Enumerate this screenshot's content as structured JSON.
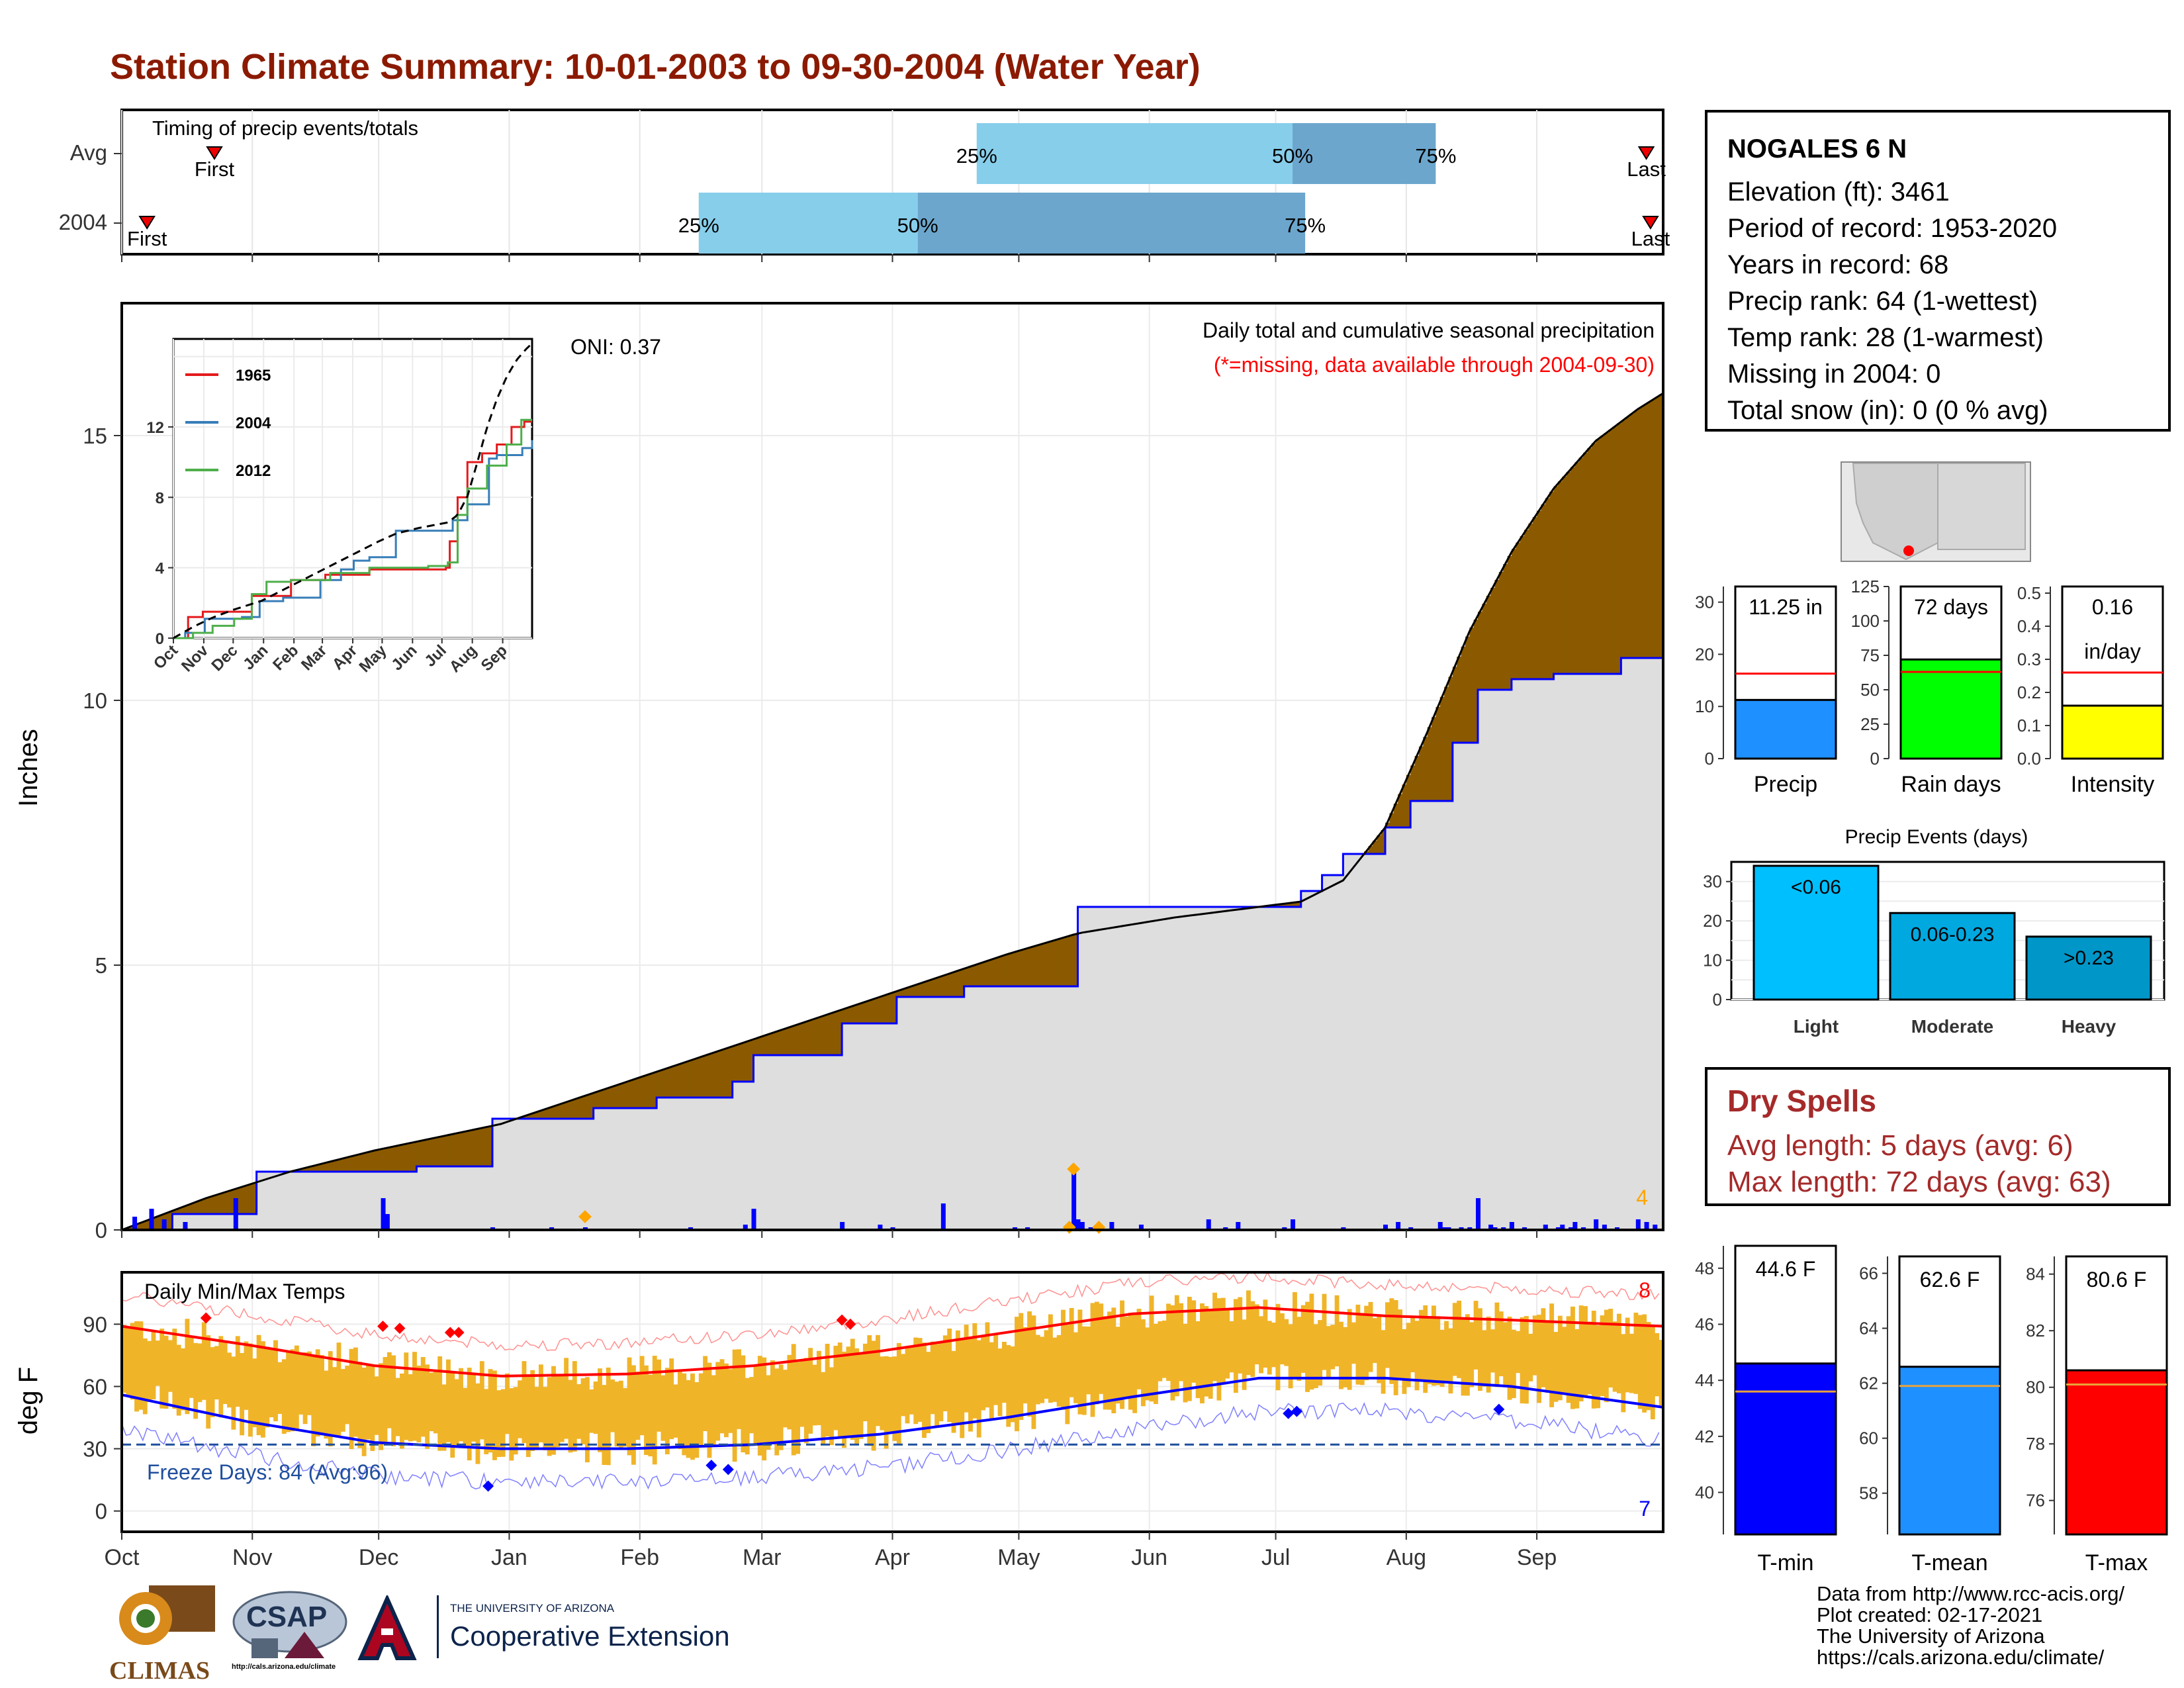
{
  "title": "Station Climate Summary: 10-01-2003 to 09-30-2004 (Water Year)",
  "timing": {
    "label": "Timing of precip events/totals",
    "rows": [
      {
        "name": "Avg",
        "first": "First",
        "last": "Last",
        "p25": "25%",
        "p50": "50%",
        "p75": "75%"
      },
      {
        "name": "2004",
        "first": "First",
        "last": "Last",
        "p25": "25%",
        "p50": "50%",
        "p75": "75%"
      }
    ]
  },
  "precip": {
    "ylabel": "Inches",
    "caption": "Daily total and cumulative seasonal precipitation",
    "missing_note": "(*=missing, data available through 2004-09-30)",
    "oni": "ONI: 0.37",
    "corner_count": "4",
    "yticks": [
      "0",
      "5",
      "10",
      "15"
    ],
    "inset": {
      "legend": [
        "1965",
        "2004",
        "2012"
      ],
      "yticks": [
        "0",
        "4",
        "8",
        "12"
      ],
      "xticks": [
        "Oct",
        "Nov",
        "Dec",
        "Jan",
        "Feb",
        "Mar",
        "Apr",
        "May",
        "Jun",
        "Jul",
        "Aug",
        "Sep"
      ]
    }
  },
  "temps": {
    "ylabel": "deg F",
    "label": "Daily Min/Max Temps",
    "freeze": "Freeze Days: 84 (Avg:96)",
    "count_high": "8",
    "count_low": "7",
    "yticks": [
      "0",
      "30",
      "60",
      "90"
    ],
    "xticks": [
      "Oct",
      "Nov",
      "Dec",
      "Jan",
      "Feb",
      "Mar",
      "Apr",
      "May",
      "Jun",
      "Jul",
      "Aug",
      "Sep"
    ]
  },
  "station": {
    "name": "NOGALES 6 N",
    "lines": [
      "Elevation (ft): 3461",
      "Period of record: 1953-2020",
      "Years in record: 68",
      "Precip rank: 64 (1-wettest)",
      "Temp rank: 28 (1-warmest)",
      "Missing in 2004: 0",
      "Total snow (in): 0 (0 % avg)"
    ]
  },
  "mini_bars": [
    {
      "label": "Precip",
      "value_text": "11.25 in",
      "yticks": [
        "0",
        "10",
        "20",
        "30"
      ],
      "color": "#1E90FF"
    },
    {
      "label": "Rain days",
      "value_text": "72 days",
      "yticks": [
        "0",
        "25",
        "50",
        "75",
        "100",
        "125"
      ],
      "color": "#00FF00"
    },
    {
      "label": "Intensity",
      "value_text": "0.16",
      "value_unit": "in/day",
      "yticks": [
        "0.0",
        "0.1",
        "0.2",
        "0.3",
        "0.4",
        "0.5"
      ],
      "color": "#FFFF00"
    }
  ],
  "events": {
    "title": "Precip Events (days)",
    "yticks": [
      "0",
      "10",
      "20",
      "30"
    ],
    "bars": [
      {
        "label": "Light",
        "range": "<0.06"
      },
      {
        "label": "Moderate",
        "range": "0.06-0.23"
      },
      {
        "label": "Heavy",
        "range": ">0.23"
      }
    ]
  },
  "dry_spells": {
    "title": "Dry Spells",
    "avg": "Avg length: 5 days (avg: 6)",
    "max": "Max length: 72 days (avg: 63)"
  },
  "temp_bars": [
    {
      "label": "T-min",
      "value_text": "44.6 F",
      "yticks": [
        "40",
        "42",
        "44",
        "46",
        "48"
      ],
      "color": "#0000FF"
    },
    {
      "label": "T-mean",
      "value_text": "62.6 F",
      "yticks": [
        "58",
        "60",
        "62",
        "64",
        "66"
      ],
      "color": "#1E90FF"
    },
    {
      "label": "T-max",
      "value_text": "80.6 F",
      "yticks": [
        "76",
        "78",
        "80",
        "82",
        "84"
      ],
      "color": "#FF0000"
    }
  ],
  "footer": {
    "lines": [
      "Data from http://www.rcc-acis.org/",
      "Plot created: 02-17-2021",
      "The University of Arizona",
      "https://cals.arizona.edu/climate/"
    ],
    "climas": "CLIMAS",
    "csap": "CSAP",
    "csap_url": "http://cals.arizona.edu/climate",
    "ua_small": "THE UNIVERSITY OF ARIZONA",
    "ua_big": "Cooperative Extension"
  },
  "chart_data": [
    {
      "type": "area",
      "title": "Daily total and cumulative seasonal precipitation",
      "ylabel": "Inches",
      "ylim": [
        0,
        17.5
      ],
      "x_unit": "day of water year (Oct 1 = 0)",
      "series": [
        {
          "name": "cumulative 2004",
          "x": [
            0,
            12,
            32,
            70,
            88,
            100,
            112,
            127,
            145,
            150,
            171,
            184,
            200,
            220,
            227,
            248,
            259,
            278,
            280,
            285,
            290,
            300,
            306,
            316,
            322,
            330,
            340,
            356,
            366
          ],
          "y": [
            0,
            0.3,
            1.1,
            1.2,
            2.1,
            2.1,
            2.3,
            2.5,
            2.8,
            3.3,
            3.9,
            4.4,
            4.6,
            4.6,
            6.1,
            6.1,
            6.1,
            6.1,
            6.4,
            6.7,
            7.1,
            7.6,
            8.1,
            9.2,
            10.2,
            10.4,
            10.5,
            10.8,
            11.25
          ]
        },
        {
          "name": "cumulative average",
          "x": [
            0,
            20,
            40,
            60,
            90,
            120,
            150,
            180,
            210,
            227,
            250,
            270,
            280,
            290,
            300,
            310,
            320,
            330,
            340,
            350,
            360,
            366
          ],
          "y": [
            0,
            0.6,
            1.1,
            1.5,
            2.0,
            2.8,
            3.6,
            4.4,
            5.2,
            5.6,
            5.9,
            6.1,
            6.2,
            6.6,
            7.6,
            9.4,
            11.3,
            12.8,
            14.0,
            14.9,
            15.5,
            15.8
          ]
        }
      ]
    },
    {
      "type": "bar",
      "title": "Precip Events (days)",
      "categories": [
        "Light",
        "Moderate",
        "Heavy"
      ],
      "values": [
        34,
        22,
        16
      ],
      "ylim": [
        0,
        35
      ]
    },
    {
      "type": "bar",
      "categories": [
        "Precip",
        "Rain days",
        "Intensity"
      ],
      "series": [
        {
          "name": "2004",
          "values": [
            11.25,
            72,
            0.16
          ]
        },
        {
          "name": "average",
          "values": [
            16.3,
            63,
            0.26
          ]
        }
      ]
    },
    {
      "type": "bar",
      "categories": [
        "T-min",
        "T-mean",
        "T-max"
      ],
      "series": [
        {
          "name": "2004",
          "values": [
            44.6,
            62.6,
            80.6
          ]
        },
        {
          "name": "average",
          "values": [
            43.6,
            61.9,
            80.1
          ]
        }
      ]
    },
    {
      "type": "line",
      "title": "Daily Min/Max Temps",
      "ylabel": "deg F",
      "ylim": [
        -10,
        115
      ],
      "series": [
        {
          "name": "avg max",
          "x": [
            0,
            30,
            60,
            90,
            120,
            150,
            180,
            210,
            240,
            270,
            300,
            330,
            366
          ],
          "y": [
            89,
            80,
            70,
            65,
            66,
            70,
            77,
            86,
            95,
            98,
            94,
            92,
            89
          ]
        },
        {
          "name": "avg min",
          "x": [
            0,
            30,
            60,
            90,
            120,
            150,
            180,
            210,
            240,
            270,
            300,
            330,
            366
          ],
          "y": [
            56,
            43,
            33,
            30,
            30,
            32,
            37,
            45,
            55,
            64,
            64,
            60,
            50
          ]
        }
      ]
    }
  ]
}
